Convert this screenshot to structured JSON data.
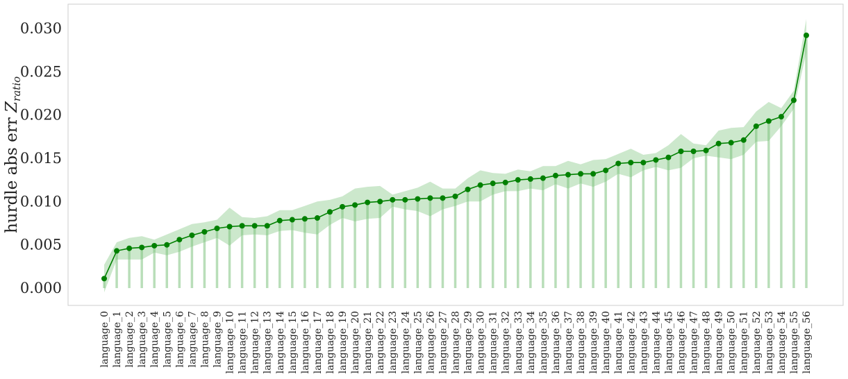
{
  "chart_data": {
    "type": "line",
    "title": "",
    "xlabel": "",
    "ylabel": "hurdle abs err ",
    "ylabel_math": "Z",
    "ylabel_subscript": "ratio",
    "ylim": [
      -0.002,
      0.0328
    ],
    "yticks": [
      "0.000",
      "0.005",
      "0.010",
      "0.015",
      "0.020",
      "0.025",
      "0.030"
    ],
    "grid": false,
    "categories": [
      "language_0",
      "language_1",
      "language_2",
      "language_3",
      "language_4",
      "language_5",
      "language_6",
      "language_7",
      "language_8",
      "language_9",
      "language_10",
      "language_11",
      "language_12",
      "language_13",
      "language_14",
      "language_15",
      "language_16",
      "language_17",
      "language_18",
      "language_19",
      "language_20",
      "language_21",
      "language_22",
      "language_23",
      "language_24",
      "language_25",
      "language_26",
      "language_27",
      "language_28",
      "language_29",
      "language_30",
      "language_31",
      "language_32",
      "language_33",
      "language_34",
      "language_35",
      "language_36",
      "language_37",
      "language_38",
      "language_39",
      "language_40",
      "language_41",
      "language_42",
      "language_43",
      "language_44",
      "language_45",
      "language_46",
      "language_47",
      "language_48",
      "language_49",
      "language_50",
      "language_51",
      "language_52",
      "language_53",
      "language_54",
      "language_55",
      "language_56"
    ],
    "series": [
      {
        "values": [
          0.0011,
          0.0043,
          0.0046,
          0.0047,
          0.0049,
          0.005,
          0.0056,
          0.0061,
          0.0065,
          0.0069,
          0.0071,
          0.0072,
          0.0072,
          0.0072,
          0.0078,
          0.0079,
          0.008,
          0.0081,
          0.0088,
          0.0094,
          0.0096,
          0.0099,
          0.01,
          0.0102,
          0.0102,
          0.0103,
          0.0104,
          0.0104,
          0.0106,
          0.0114,
          0.0119,
          0.0121,
          0.0122,
          0.0125,
          0.0126,
          0.0127,
          0.013,
          0.0131,
          0.0132,
          0.0132,
          0.0136,
          0.0144,
          0.0145,
          0.0145,
          0.0148,
          0.0151,
          0.0158,
          0.0158,
          0.0159,
          0.0167,
          0.0168,
          0.0171,
          0.0187,
          0.0193,
          0.0198,
          0.0217,
          0.0292
        ],
        "lower": [
          -0.0005,
          0.0033,
          0.0033,
          0.0033,
          0.0041,
          0.0038,
          0.0042,
          0.0048,
          0.0053,
          0.0058,
          0.0049,
          0.0061,
          0.0062,
          0.0061,
          0.0066,
          0.0067,
          0.0064,
          0.0062,
          0.0073,
          0.0081,
          0.0077,
          0.008,
          0.0081,
          0.0094,
          0.0091,
          0.0089,
          0.0083,
          0.0091,
          0.0095,
          0.01,
          0.01,
          0.0108,
          0.0112,
          0.0112,
          0.0115,
          0.0113,
          0.012,
          0.0115,
          0.0121,
          0.0117,
          0.0123,
          0.0132,
          0.0128,
          0.0136,
          0.014,
          0.0136,
          0.0139,
          0.015,
          0.0153,
          0.0151,
          0.0149,
          0.0154,
          0.0169,
          0.017,
          0.0187,
          0.0207,
          0.0272
        ],
        "upper": [
          0.0027,
          0.0053,
          0.0058,
          0.006,
          0.0056,
          0.0062,
          0.0068,
          0.0074,
          0.0076,
          0.0079,
          0.0093,
          0.0082,
          0.0081,
          0.0083,
          0.009,
          0.009,
          0.0095,
          0.01,
          0.0102,
          0.0106,
          0.0115,
          0.0117,
          0.0118,
          0.0108,
          0.0112,
          0.0116,
          0.0123,
          0.0115,
          0.0115,
          0.0127,
          0.0136,
          0.0133,
          0.0132,
          0.0137,
          0.0135,
          0.0141,
          0.0141,
          0.0147,
          0.0143,
          0.0148,
          0.0149,
          0.0155,
          0.0161,
          0.0154,
          0.0156,
          0.0165,
          0.0178,
          0.0167,
          0.0165,
          0.0182,
          0.0185,
          0.0186,
          0.0204,
          0.0215,
          0.0208,
          0.0228,
          0.0311
        ]
      }
    ],
    "colors": {
      "line": "#008000",
      "band": "#7ac27a",
      "stem": "#b9deb9",
      "frame": "#cccccc"
    }
  }
}
